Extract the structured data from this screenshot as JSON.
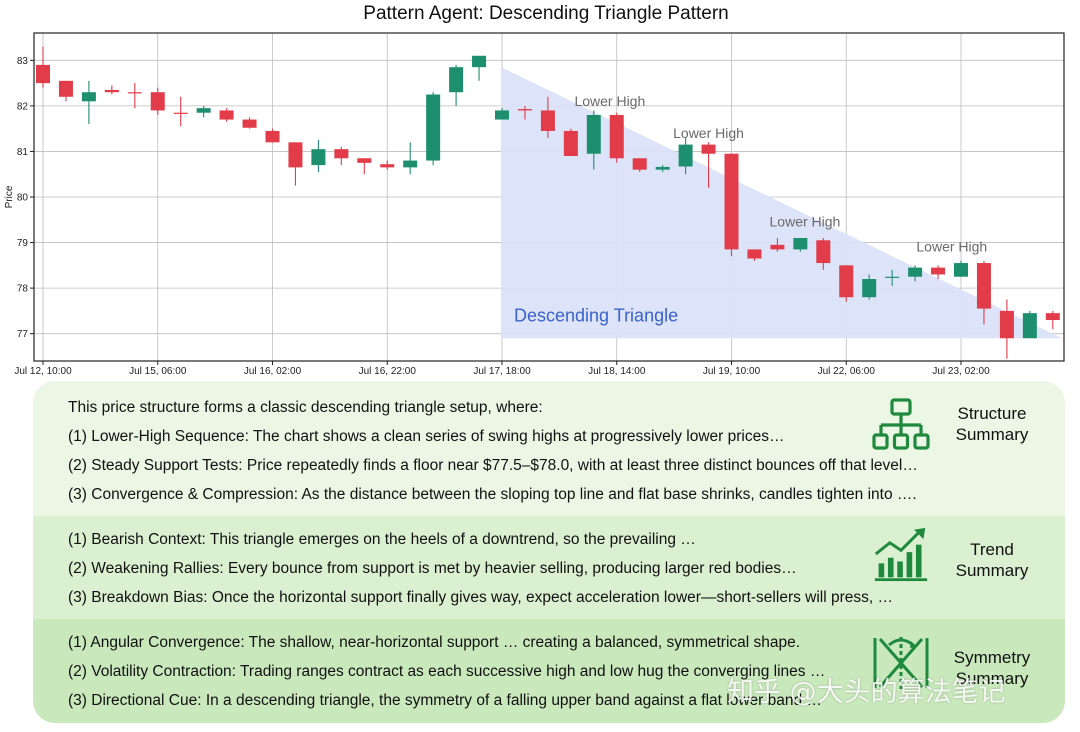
{
  "chart_data": {
    "type": "candlestick",
    "title": "Pattern Agent:  Descending Triangle Pattern",
    "ylabel": "Price",
    "xlabel": "",
    "ylim": [
      76.4,
      83.6
    ],
    "y_ticks": [
      77,
      78,
      79,
      80,
      81,
      82,
      83
    ],
    "x_tick_labels": [
      "Jul 12, 10:00",
      "Jul 15, 06:00",
      "Jul 16, 02:00",
      "Jul 16, 22:00",
      "Jul 17, 18:00",
      "Jul 18, 14:00",
      "Jul 19, 10:00",
      "Jul 22, 06:00",
      "Jul 23, 02:00"
    ],
    "x_tick_index": [
      0,
      5,
      10,
      15,
      20,
      25,
      30,
      35,
      40
    ],
    "grid": true,
    "colors": {
      "up": "#1e8f6e",
      "down": "#e23b4a",
      "triangle_fill": "#dbe2f8",
      "triangle_text": "#3a62c9"
    },
    "candles": [
      {
        "o": 82.9,
        "h": 83.3,
        "l": 82.4,
        "c": 82.5
      },
      {
        "o": 82.55,
        "h": 82.55,
        "l": 82.1,
        "c": 82.2
      },
      {
        "o": 82.1,
        "h": 82.55,
        "l": 81.6,
        "c": 82.3
      },
      {
        "o": 82.35,
        "h": 82.45,
        "l": 82.25,
        "c": 82.3
      },
      {
        "o": 82.3,
        "h": 82.5,
        "l": 81.95,
        "c": 82.28
      },
      {
        "o": 82.3,
        "h": 82.4,
        "l": 81.8,
        "c": 81.9
      },
      {
        "o": 81.85,
        "h": 82.2,
        "l": 81.55,
        "c": 81.84
      },
      {
        "o": 81.85,
        "h": 82.0,
        "l": 81.75,
        "c": 81.95
      },
      {
        "o": 81.9,
        "h": 81.95,
        "l": 81.65,
        "c": 81.7
      },
      {
        "o": 81.7,
        "h": 81.75,
        "l": 81.5,
        "c": 81.52
      },
      {
        "o": 81.45,
        "h": 81.5,
        "l": 81.2,
        "c": 81.2
      },
      {
        "o": 81.2,
        "h": 81.2,
        "l": 80.25,
        "c": 80.65
      },
      {
        "o": 80.7,
        "h": 81.25,
        "l": 80.55,
        "c": 81.05
      },
      {
        "o": 81.05,
        "h": 81.1,
        "l": 80.7,
        "c": 80.85
      },
      {
        "o": 80.85,
        "h": 80.85,
        "l": 80.5,
        "c": 80.75
      },
      {
        "o": 80.72,
        "h": 80.8,
        "l": 80.6,
        "c": 80.65
      },
      {
        "o": 80.65,
        "h": 81.2,
        "l": 80.5,
        "c": 80.8
      },
      {
        "o": 80.8,
        "h": 82.3,
        "l": 80.7,
        "c": 82.25
      },
      {
        "o": 82.3,
        "h": 82.9,
        "l": 82.0,
        "c": 82.85
      },
      {
        "o": 82.85,
        "h": 83.1,
        "l": 82.55,
        "c": 83.1
      },
      {
        "o": 81.7,
        "h": 81.95,
        "l": 81.7,
        "c": 81.9
      },
      {
        "o": 81.93,
        "h": 82.0,
        "l": 81.7,
        "c": 81.9
      },
      {
        "o": 81.9,
        "h": 82.2,
        "l": 81.3,
        "c": 81.45
      },
      {
        "o": 81.45,
        "h": 81.5,
        "l": 80.9,
        "c": 80.9
      },
      {
        "o": 80.95,
        "h": 81.9,
        "l": 80.6,
        "c": 81.8
      },
      {
        "o": 81.8,
        "h": 81.85,
        "l": 80.75,
        "c": 80.85
      },
      {
        "o": 80.85,
        "h": 80.85,
        "l": 80.55,
        "c": 80.6
      },
      {
        "o": 80.6,
        "h": 80.7,
        "l": 80.55,
        "c": 80.66
      },
      {
        "o": 80.67,
        "h": 81.3,
        "l": 80.5,
        "c": 81.15
      },
      {
        "o": 81.15,
        "h": 81.2,
        "l": 80.2,
        "c": 80.95
      },
      {
        "o": 80.95,
        "h": 80.95,
        "l": 78.7,
        "c": 78.85
      },
      {
        "o": 78.85,
        "h": 78.85,
        "l": 78.6,
        "c": 78.65
      },
      {
        "o": 78.95,
        "h": 79.1,
        "l": 78.8,
        "c": 78.85
      },
      {
        "o": 78.85,
        "h": 79.1,
        "l": 78.8,
        "c": 79.1
      },
      {
        "o": 79.05,
        "h": 79.1,
        "l": 78.4,
        "c": 78.55
      },
      {
        "o": 78.5,
        "h": 78.5,
        "l": 77.7,
        "c": 77.8
      },
      {
        "o": 77.8,
        "h": 78.3,
        "l": 77.75,
        "c": 78.2
      },
      {
        "o": 78.25,
        "h": 78.4,
        "l": 78.05,
        "c": 78.25
      },
      {
        "o": 78.25,
        "h": 78.5,
        "l": 78.15,
        "c": 78.45
      },
      {
        "o": 78.45,
        "h": 78.5,
        "l": 78.2,
        "c": 78.3
      },
      {
        "o": 78.25,
        "h": 78.6,
        "l": 78.25,
        "c": 78.55
      },
      {
        "o": 78.55,
        "h": 78.6,
        "l": 77.2,
        "c": 77.55
      },
      {
        "o": 77.5,
        "h": 77.75,
        "l": 76.45,
        "c": 76.9
      },
      {
        "o": 76.9,
        "h": 77.5,
        "l": 76.9,
        "c": 77.45
      },
      {
        "o": 77.45,
        "h": 77.5,
        "l": 77.1,
        "c": 77.3
      }
    ],
    "triangle": {
      "label": "Descending Triangle",
      "start_index": 20,
      "top_start": 82.85,
      "end_index": 44.4,
      "top_end": 76.9,
      "base": 76.9
    },
    "annotations": [
      {
        "text": "Lower High",
        "index": 24.7,
        "y": 82.0
      },
      {
        "text": "Lower High",
        "index": 29.0,
        "y": 81.3
      },
      {
        "text": "Lower High",
        "index": 33.2,
        "y": 79.35
      },
      {
        "text": "Lower High",
        "index": 39.6,
        "y": 78.8
      }
    ]
  },
  "sections": [
    {
      "heading_lines": [
        "Structure",
        "Summary"
      ],
      "icon": "hierarchy-icon",
      "lines": [
        "This price structure forms a classic descending triangle setup, where:",
        "(1) Lower-High Sequence: The chart shows a clean series of swing highs at progressively lower prices…",
        "(2) Steady Support Tests: Price repeatedly finds a floor near $77.5–$78.0, with at least three distinct bounces off that level…",
        "(3) Convergence & Compression: As the distance between the sloping top line and flat base shrinks, candles tighten into …."
      ]
    },
    {
      "heading_lines": [
        "Trend",
        "Summary"
      ],
      "icon": "trend-chart-icon",
      "lines": [
        "(1) Bearish Context: This triangle emerges on the heels of a downtrend, so the prevailing …",
        "(2) Weakening Rallies: Every bounce from support is met by heavier selling, producing larger red bodies…",
        "(3) Breakdown Bias: Once the horizontal support finally gives way, expect acceleration lower—short-sellers will press, …"
      ]
    },
    {
      "heading_lines": [
        "Symmetry",
        "Summary"
      ],
      "icon": "hourglass-symmetry-icon",
      "lines": [
        "(1) Angular Convergence: The shallow, near-horizontal support … creating a balanced, symmetrical shape.",
        "(2) Volatility Contraction: Trading ranges contract as each successive high and low hug the converging lines …",
        "(3) Directional Cue: In a descending triangle, the symmetry of a falling upper band against a flat lower band …"
      ]
    }
  ],
  "watermark": "知乎 @大头的算法笔记"
}
